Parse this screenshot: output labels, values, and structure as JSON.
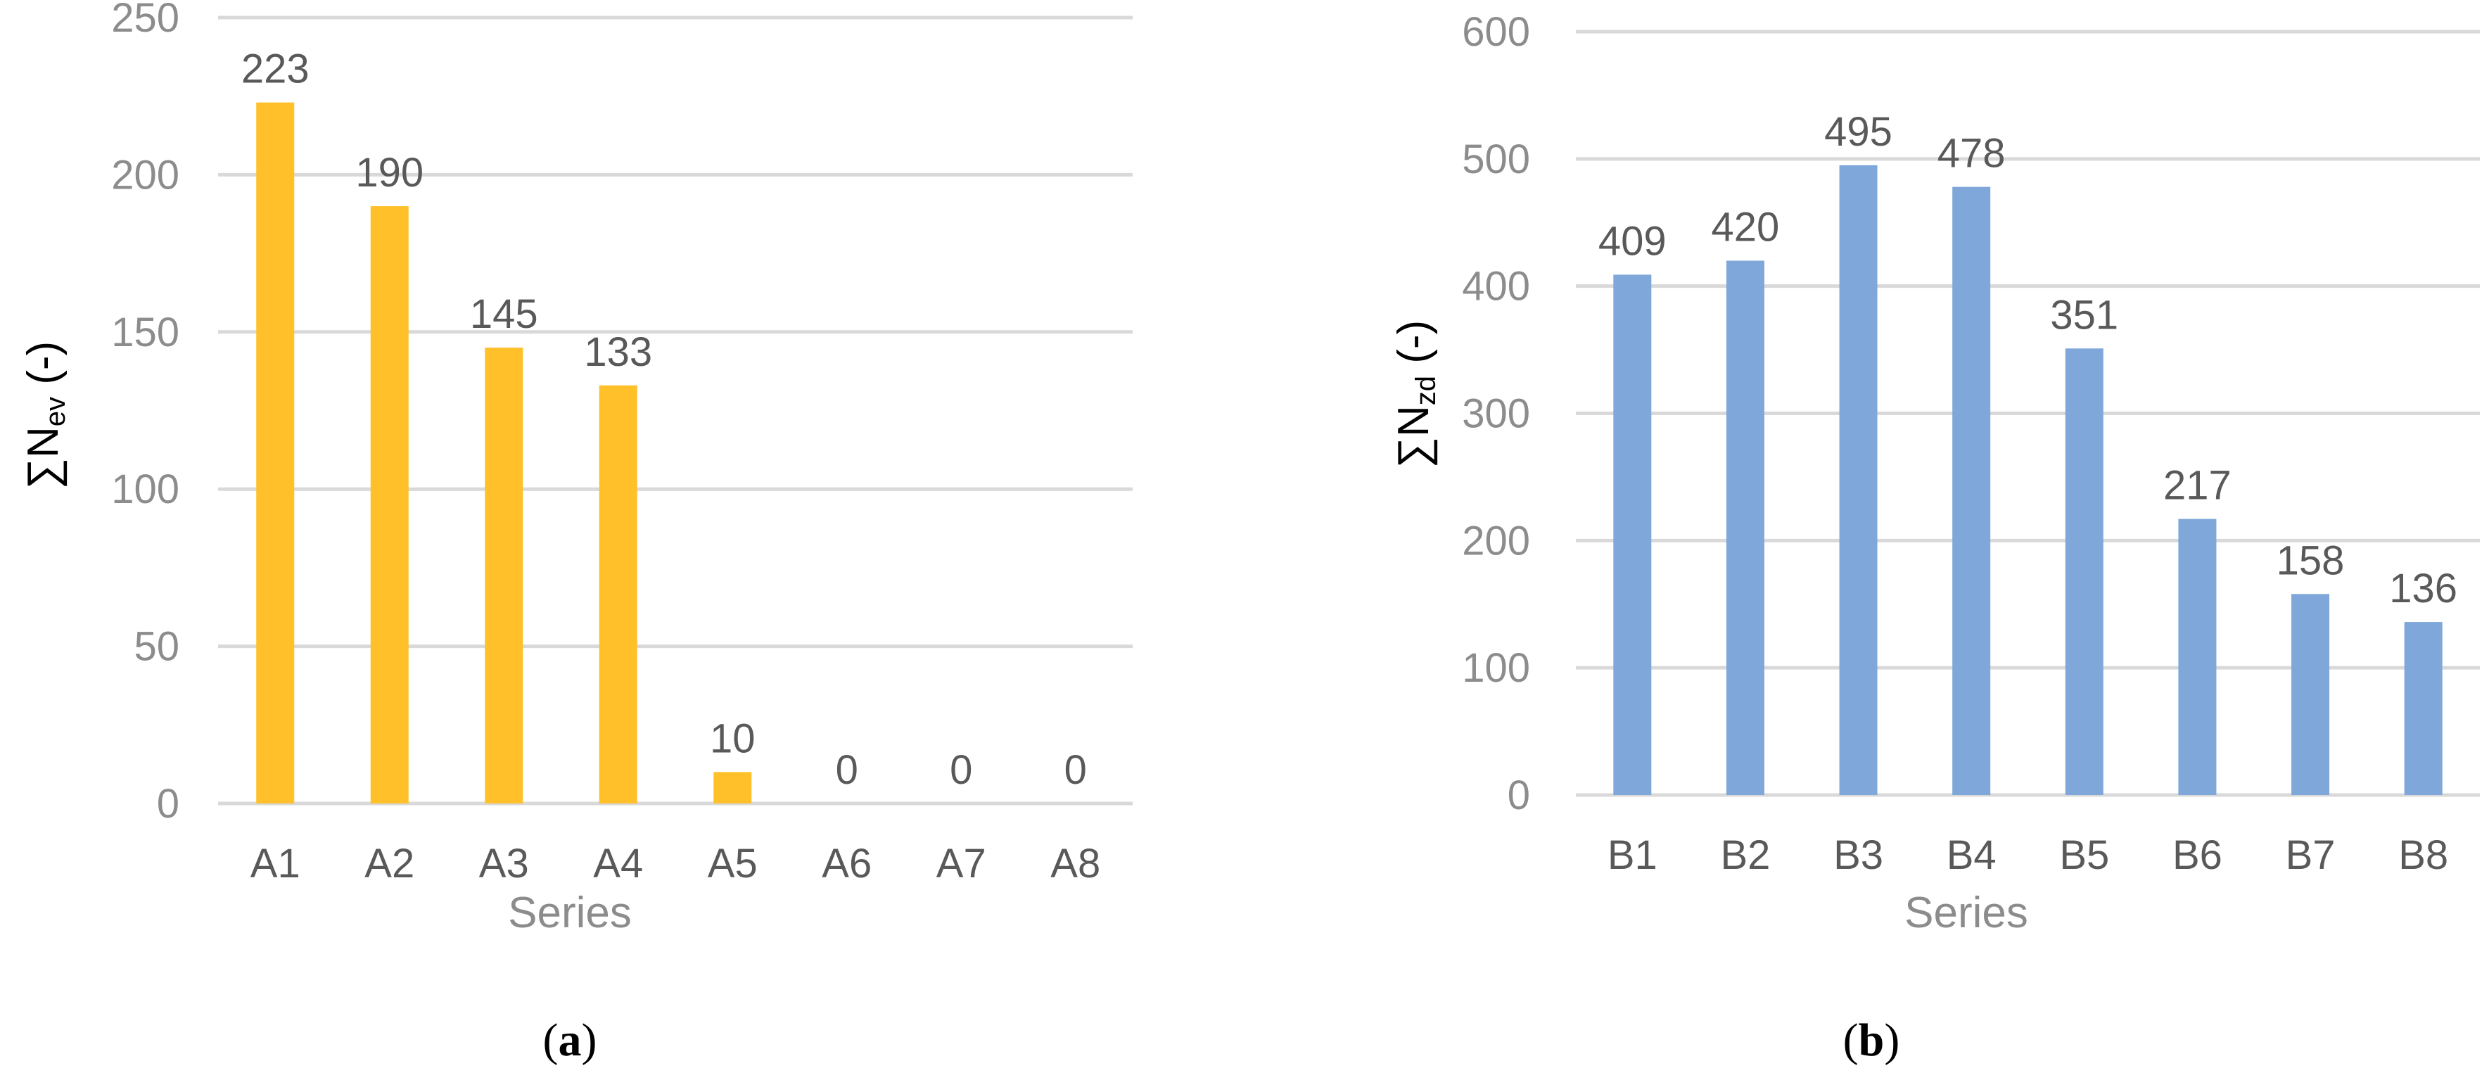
{
  "chart_data": [
    {
      "type": "bar",
      "panel": "a",
      "categories": [
        "A1",
        "A2",
        "A3",
        "A4",
        "A5",
        "A6",
        "A7",
        "A8"
      ],
      "values": [
        223,
        190,
        145,
        133,
        10,
        0,
        0,
        0
      ],
      "xlabel": "Series",
      "ylabel": {
        "prefix": "∑N",
        "sub": "ev",
        "suffix": " (-)"
      },
      "ylim": [
        0,
        250
      ],
      "yticks": [
        0,
        50,
        100,
        150,
        200,
        250
      ],
      "color": "#FFC02A",
      "grid": true
    },
    {
      "type": "bar",
      "panel": "b",
      "categories": [
        "B1",
        "B2",
        "B3",
        "B4",
        "B5",
        "B6",
        "B7",
        "B8"
      ],
      "values": [
        409,
        420,
        495,
        478,
        351,
        217,
        158,
        136
      ],
      "xlabel": "Series",
      "ylabel": {
        "prefix": "∑N",
        "sub": "zd",
        "suffix": " (-)"
      },
      "ylim": [
        0,
        600
      ],
      "yticks": [
        0,
        100,
        200,
        300,
        400,
        500,
        600
      ],
      "color": "#7FA7D9",
      "grid": true
    }
  ]
}
